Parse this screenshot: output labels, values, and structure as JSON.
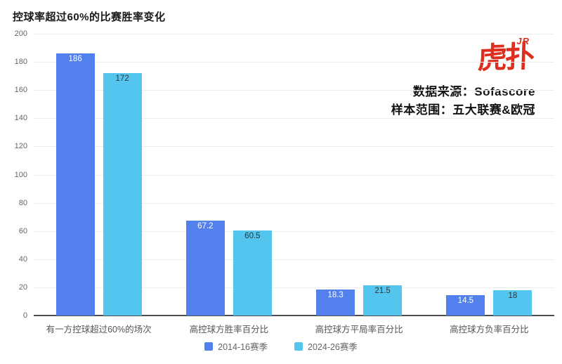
{
  "title": "控球率超过60%的比赛胜率变化",
  "header": {
    "logo_text": "虎扑",
    "logo_badge": "JR",
    "logo_color": "#dd2e1f",
    "source_line1": "数据来源：Sofascore",
    "source_line2": "样本范围：五大联赛&欧冠"
  },
  "chart_data": {
    "type": "bar",
    "title": "控球率超过60%的比赛胜率变化",
    "categories": [
      "有一方控球超过60%的场次",
      "高控球方胜率百分比",
      "高控球方平局率百分比",
      "高控球方负率百分比"
    ],
    "series": [
      {
        "name": "2014-16赛季",
        "color": "#5280ec",
        "label_color": "#ffffff",
        "values": [
          186,
          67.2,
          18.3,
          14.5
        ]
      },
      {
        "name": "2024-26赛季",
        "color": "#54c5ee",
        "label_color": "#333333",
        "values": [
          172,
          60.5,
          21.5,
          18
        ]
      }
    ],
    "ylim": [
      0,
      200
    ],
    "ytick_step": 20,
    "grid": true,
    "legend_position": "bottom",
    "value_labels": "inside-top"
  }
}
